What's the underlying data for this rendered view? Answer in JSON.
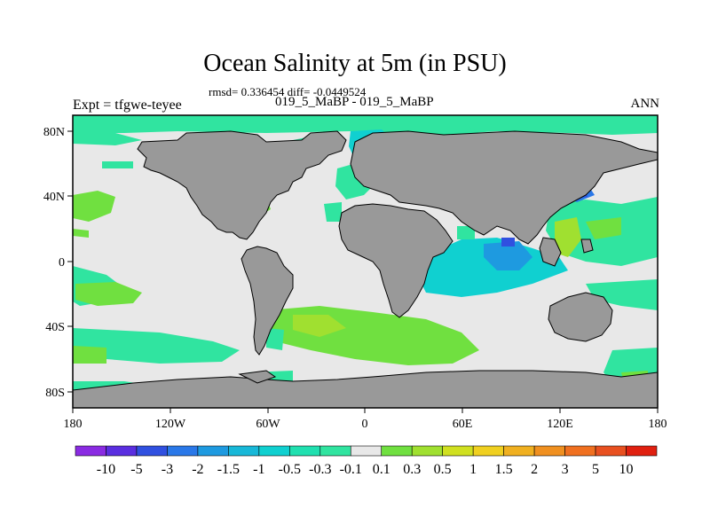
{
  "title": "Ocean Salinity at 5m (in PSU)",
  "stats_line": "rmsd= 0.336454 diff= -0.0449524",
  "left_label": "Expt = tfgwe-teyee",
  "center_label": "019_5_MaBP - 019_5_MaBP",
  "right_label": "ANN",
  "lon_ticks": [
    "180",
    "120W",
    "60W",
    "0",
    "60E",
    "120E",
    "180"
  ],
  "lat_ticks": [
    "80N",
    "40N",
    "0",
    "40S",
    "80S"
  ],
  "colorbar": {
    "labels": [
      "-10",
      "-5",
      "-3",
      "-2",
      "-1.5",
      "-1",
      "-0.5",
      "-0.3",
      "-0.1",
      "0.1",
      "0.3",
      "0.5",
      "1",
      "1.5",
      "2",
      "3",
      "5",
      "10"
    ],
    "colors": [
      "#8a2be2",
      "#5a2ee0",
      "#3050e0",
      "#2a78e8",
      "#1e9ae0",
      "#18b8d8",
      "#10d0d0",
      "#20e0b0",
      "#30e4a0",
      "#e8e8e8",
      "#70e040",
      "#a0e030",
      "#d0e020",
      "#f0d020",
      "#f0b020",
      "#f09020",
      "#f07020",
      "#e85020",
      "#e02010"
    ]
  },
  "colors": {
    "land": "#999999",
    "no_change": "#e8e8e8"
  }
}
